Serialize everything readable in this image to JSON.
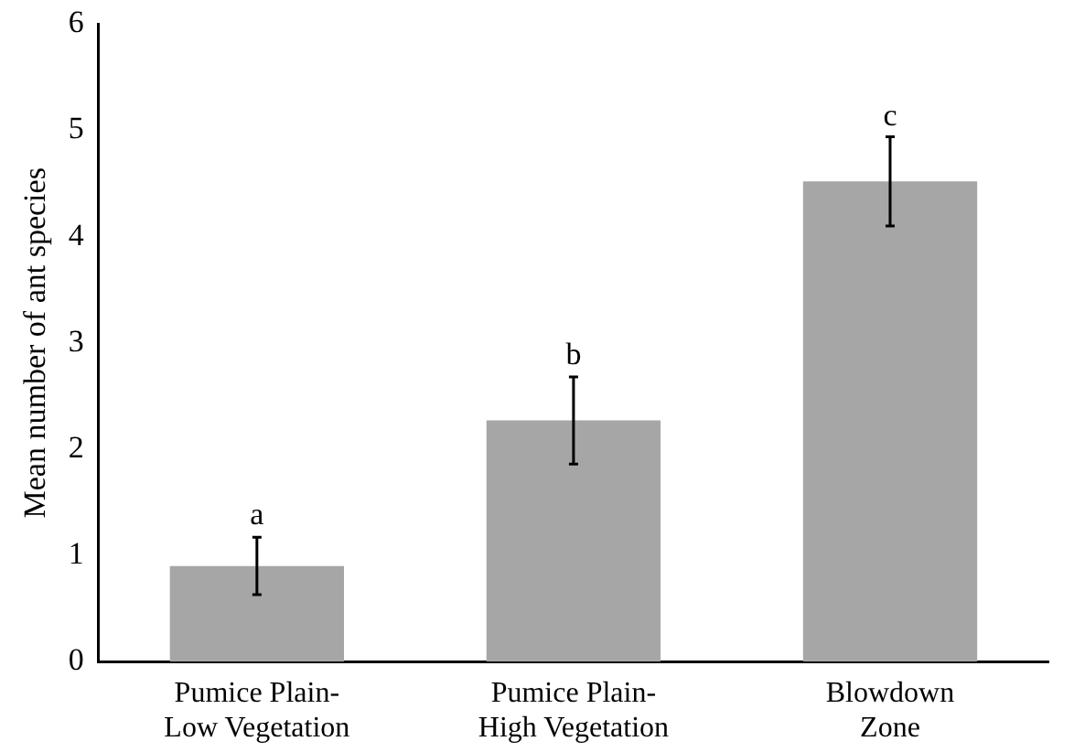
{
  "chart_data": {
    "type": "bar",
    "ylabel": "Mean number of ant species",
    "categories": [
      "Pumice Plain-\nLow Vegetation",
      "Pumice Plain-\nHigh Vegetation",
      "Blowdown\nZone"
    ],
    "values": [
      0.9,
      2.27,
      4.52
    ],
    "errors": [
      0.27,
      0.41,
      0.42
    ],
    "color": "#a6a6a6",
    "ylim": [
      0,
      6
    ],
    "yticks": [
      0,
      1,
      2,
      3,
      4,
      5,
      6
    ],
    "grid": false,
    "annotations": [
      {
        "text": "a",
        "x": "Pumice Plain-\nLow Vegetation",
        "y": 1.17
      },
      {
        "text": "b",
        "x": "Pumice Plain-\nHigh Vegetation",
        "y": 2.68
      },
      {
        "text": "c",
        "x": "Blowdown\nZone",
        "y": 4.93
      }
    ]
  }
}
